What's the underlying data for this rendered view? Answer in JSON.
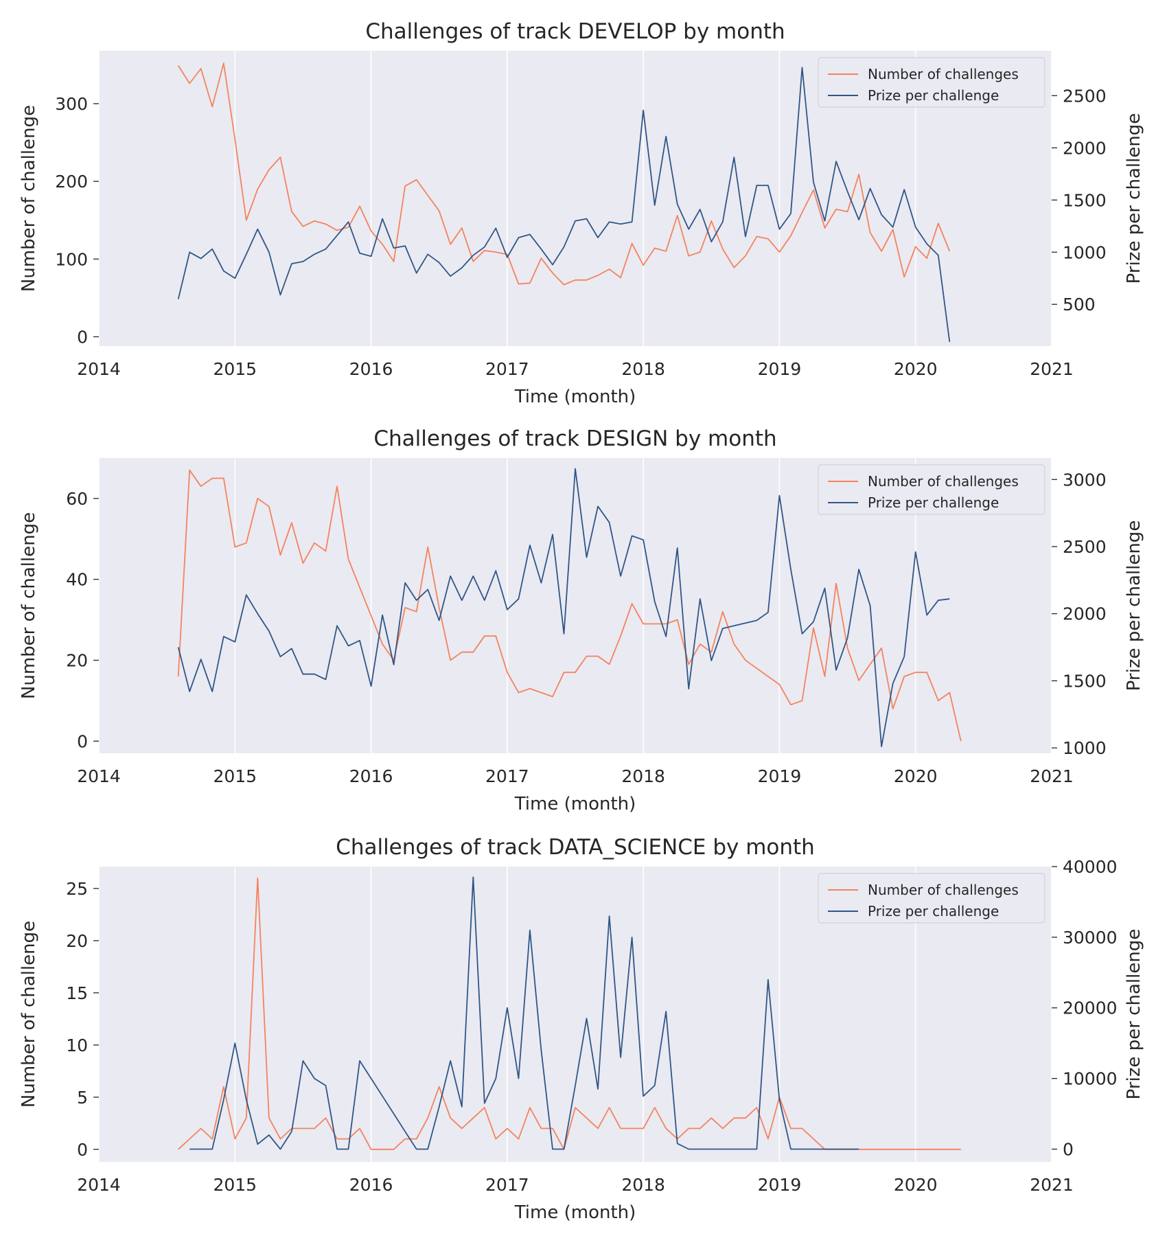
{
  "colors": {
    "background": "#eaeaf2",
    "grid": "#ffffff",
    "challenges": "#f4835d",
    "prize": "#2f5686",
    "text": "#262626"
  },
  "chart_data": [
    {
      "type": "line",
      "title": "Challenges of track DEVELOP by month",
      "xlabel": "Time (month)",
      "ylabel": "Number of challenge",
      "ylabel_right": "Prize per challenge",
      "xlim": [
        2014,
        2021
      ],
      "x_ticks": [
        "2014",
        "2015",
        "2016",
        "2017",
        "2018",
        "2019",
        "2020",
        "2021"
      ],
      "ylim_left": [
        -12,
        368
      ],
      "y_ticks_left": [
        0,
        100,
        200,
        300
      ],
      "ylim_right": [
        100,
        2930
      ],
      "y_ticks_right": [
        500,
        1000,
        1500,
        2000,
        2500
      ],
      "grid": "vertical",
      "legend_position": "top-right",
      "x_start": "2014-08",
      "series": [
        {
          "name": "Number of challenges",
          "axis": "left",
          "values": [
            349,
            326,
            345,
            296,
            352,
            254,
            150,
            190,
            215,
            231,
            161,
            142,
            149,
            145,
            137,
            141,
            168,
            136,
            119,
            97,
            194,
            202,
            182,
            162,
            119,
            140,
            97,
            111,
            109,
            106,
            68,
            69,
            101,
            82,
            67,
            73,
            73,
            79,
            87,
            76,
            120,
            92,
            114,
            110,
            156,
            104,
            109,
            149,
            113,
            89,
            104,
            129,
            126,
            109,
            130,
            160,
            189,
            140,
            164,
            161,
            209,
            134,
            110,
            138,
            77,
            116,
            101,
            146,
            110
          ]
        },
        {
          "name": "Prize per challenge",
          "axis": "right",
          "values": [
            550,
            1000,
            940,
            1030,
            820,
            750,
            980,
            1220,
            1000,
            590,
            890,
            910,
            980,
            1030,
            1160,
            1290,
            990,
            960,
            1320,
            1040,
            1060,
            800,
            980,
            900,
            770,
            850,
            970,
            1050,
            1230,
            950,
            1140,
            1170,
            1030,
            880,
            1050,
            1300,
            1320,
            1140,
            1290,
            1270,
            1290,
            2360,
            1450,
            2110,
            1460,
            1220,
            1410,
            1100,
            1290,
            1910,
            1150,
            1640,
            1640,
            1220,
            1370,
            2770,
            1670,
            1300,
            1870,
            1580,
            1310,
            1610,
            1360,
            1240,
            1600,
            1240,
            1080,
            970,
            140
          ]
        }
      ]
    },
    {
      "type": "line",
      "title": "Challenges of track DESIGN by month",
      "xlabel": "Time (month)",
      "ylabel": "Number of challenge",
      "ylabel_right": "Prize per challenge",
      "xlim": [
        2014,
        2021
      ],
      "x_ticks": [
        "2014",
        "2015",
        "2016",
        "2017",
        "2018",
        "2019",
        "2020",
        "2021"
      ],
      "ylim_left": [
        -3,
        70
      ],
      "y_ticks_left": [
        0,
        20,
        40,
        60
      ],
      "ylim_right": [
        960,
        3160
      ],
      "y_ticks_right": [
        1000,
        1500,
        2000,
        2500,
        3000
      ],
      "grid": "vertical",
      "legend_position": "top-right",
      "x_start": "2014-08",
      "series": [
        {
          "name": "Number of challenges",
          "axis": "left",
          "values": [
            16,
            67,
            63,
            65,
            65,
            48,
            49,
            60,
            58,
            46,
            54,
            44,
            49,
            47,
            63,
            45,
            38,
            31,
            24,
            20,
            33,
            32,
            48,
            33,
            20,
            22,
            22,
            26,
            26,
            17,
            12,
            13,
            12,
            11,
            17,
            17,
            21,
            21,
            19,
            26,
            34,
            29,
            29,
            29,
            30,
            19,
            24,
            22,
            32,
            24,
            20,
            18,
            16,
            14,
            9,
            10,
            28,
            16,
            39,
            23,
            15,
            19,
            23,
            8,
            16,
            17,
            17,
            10,
            12,
            0
          ]
        },
        {
          "name": "Prize per challenge",
          "axis": "right",
          "values": [
            1750,
            1420,
            1660,
            1420,
            1830,
            1790,
            2140,
            2000,
            1870,
            1680,
            1740,
            1550,
            1550,
            1510,
            1910,
            1760,
            1800,
            1460,
            1990,
            1620,
            2230,
            2100,
            2180,
            1950,
            2280,
            2100,
            2280,
            2100,
            2320,
            2030,
            2110,
            2510,
            2230,
            2590,
            1850,
            3080,
            2420,
            2800,
            2680,
            2280,
            2580,
            2550,
            2090,
            1830,
            2490,
            1440,
            2110,
            1650,
            1890,
            1910,
            1930,
            1950,
            2010,
            2880,
            2330,
            1850,
            1940,
            2190,
            1580,
            1820,
            2330,
            2060,
            1010,
            1480,
            1680,
            2460,
            1990,
            2100,
            2110
          ]
        }
      ]
    },
    {
      "type": "line",
      "title": "Challenges of track DATA_SCIENCE by month",
      "xlabel": "Time (month)",
      "ylabel": "Number of challenge",
      "ylabel_right": "Prize per challenge",
      "xlim": [
        2014,
        2021
      ],
      "x_ticks": [
        "2014",
        "2015",
        "2016",
        "2017",
        "2018",
        "2019",
        "2020",
        "2021"
      ],
      "ylim_left": [
        -1.2,
        27.1
      ],
      "y_ticks_left": [
        0,
        5,
        10,
        15,
        20,
        25
      ],
      "ylim_right": [
        -1800,
        40000
      ],
      "y_ticks_right": [
        0,
        10000,
        20000,
        30000,
        40000
      ],
      "grid": "vertical",
      "legend_position": "top-right",
      "x_start": "2014-08",
      "series": [
        {
          "name": "Number of challenges",
          "axis": "left",
          "values": [
            0,
            1,
            2,
            1,
            6,
            1,
            3,
            26,
            3,
            1,
            2,
            2,
            2,
            3,
            1,
            1,
            2,
            0,
            0,
            0,
            1,
            1,
            3,
            6,
            3,
            2,
            3,
            4,
            1,
            2,
            1,
            4,
            2,
            2,
            0,
            4,
            3,
            2,
            4,
            2,
            2,
            2,
            4,
            2,
            1,
            2,
            2,
            3,
            2,
            3,
            3,
            4,
            1,
            5,
            2,
            2,
            1,
            0,
            0,
            0,
            0,
            0,
            0,
            0,
            0,
            0,
            0,
            0,
            0,
            0
          ]
        },
        {
          "name": "Prize per challenge",
          "axis": "right",
          "x_start": "2014-09",
          "values": [
            0,
            0,
            0,
            7000,
            15000,
            7000,
            700,
            2000,
            0,
            2500,
            12500,
            10000,
            9000,
            0,
            0,
            12500,
            10000,
            7500,
            5000,
            2500,
            0,
            0,
            6000,
            12500,
            6000,
            38500,
            6500,
            10000,
            20000,
            10000,
            31000,
            14000,
            0,
            0,
            9000,
            18500,
            8500,
            33000,
            13000,
            30000,
            7500,
            9000,
            19500,
            800,
            0,
            0,
            0,
            0,
            0,
            0,
            0,
            24000,
            7000,
            0,
            0,
            0,
            0,
            0,
            0,
            0
          ]
        }
      ]
    }
  ]
}
